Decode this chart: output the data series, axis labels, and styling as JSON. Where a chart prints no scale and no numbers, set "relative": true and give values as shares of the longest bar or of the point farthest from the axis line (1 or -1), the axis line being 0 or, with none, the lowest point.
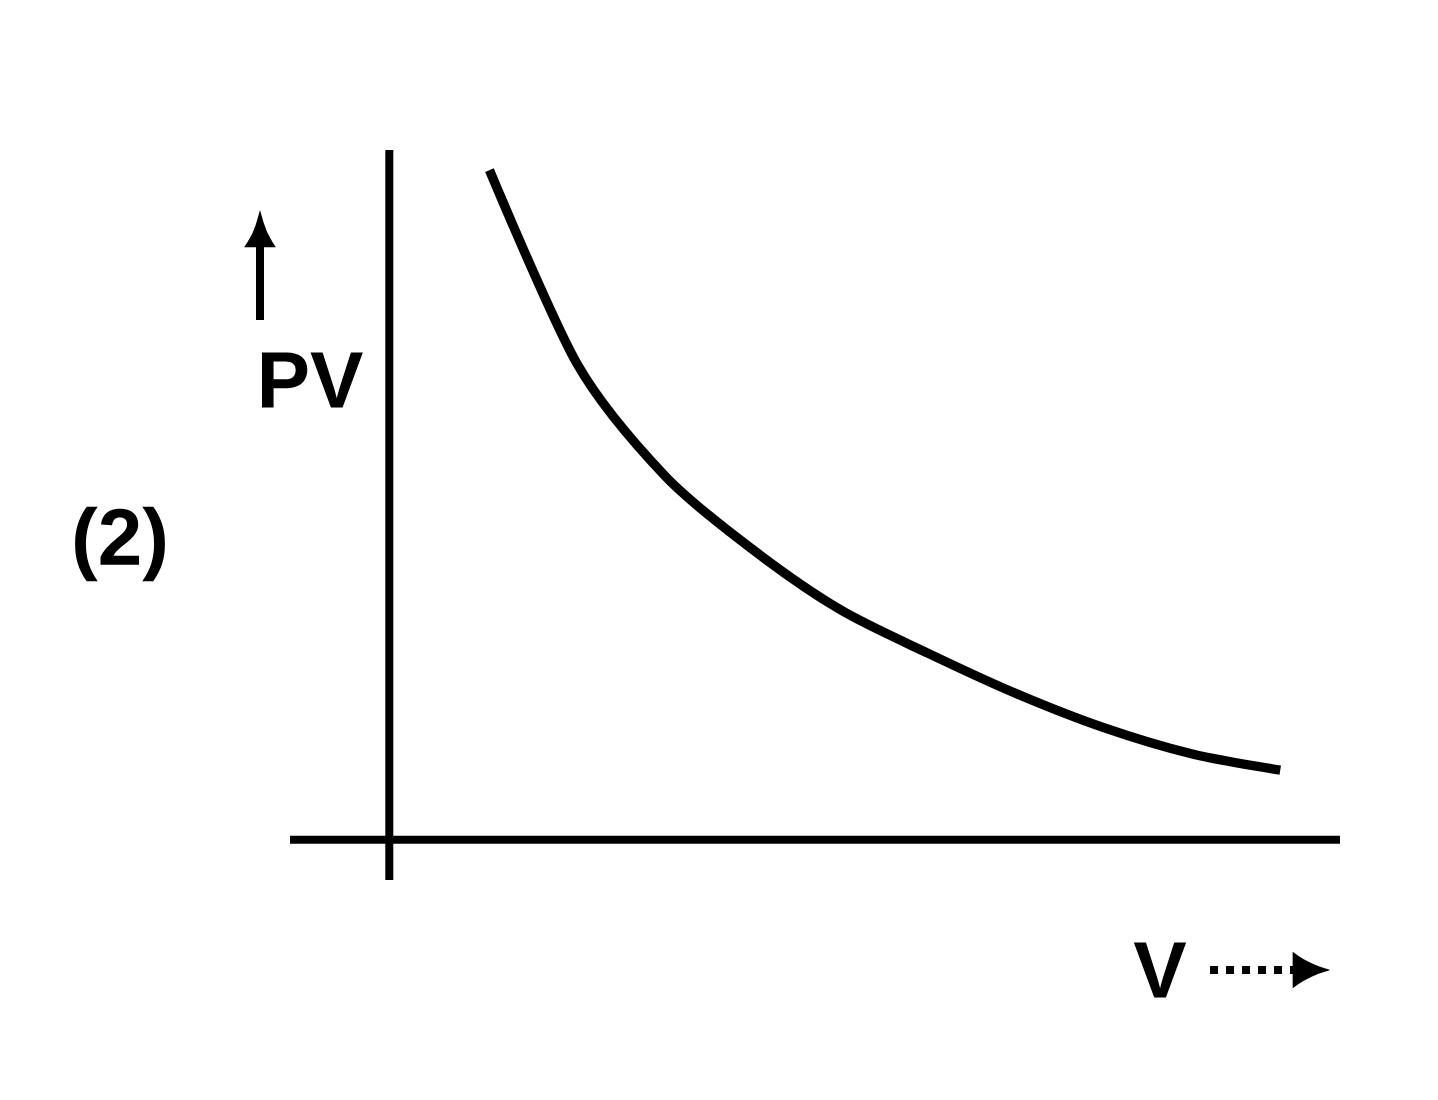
{
  "chart_data": {
    "type": "line",
    "relative": true,
    "xlabel": "V",
    "ylabel": "PV",
    "annotations": [
      "(2)"
    ],
    "categories": [
      null,
      null,
      null,
      null,
      null,
      null,
      null,
      null,
      null,
      null
    ],
    "series": [
      {
        "color": "#000000",
        "values": [
          1,
          0.71,
          0.543,
          0.433,
          0.343,
          0.278,
          0.218,
          0.167,
          0.128,
          0.104
        ]
      }
    ],
    "marker": "none",
    "line_style": "solid"
  }
}
